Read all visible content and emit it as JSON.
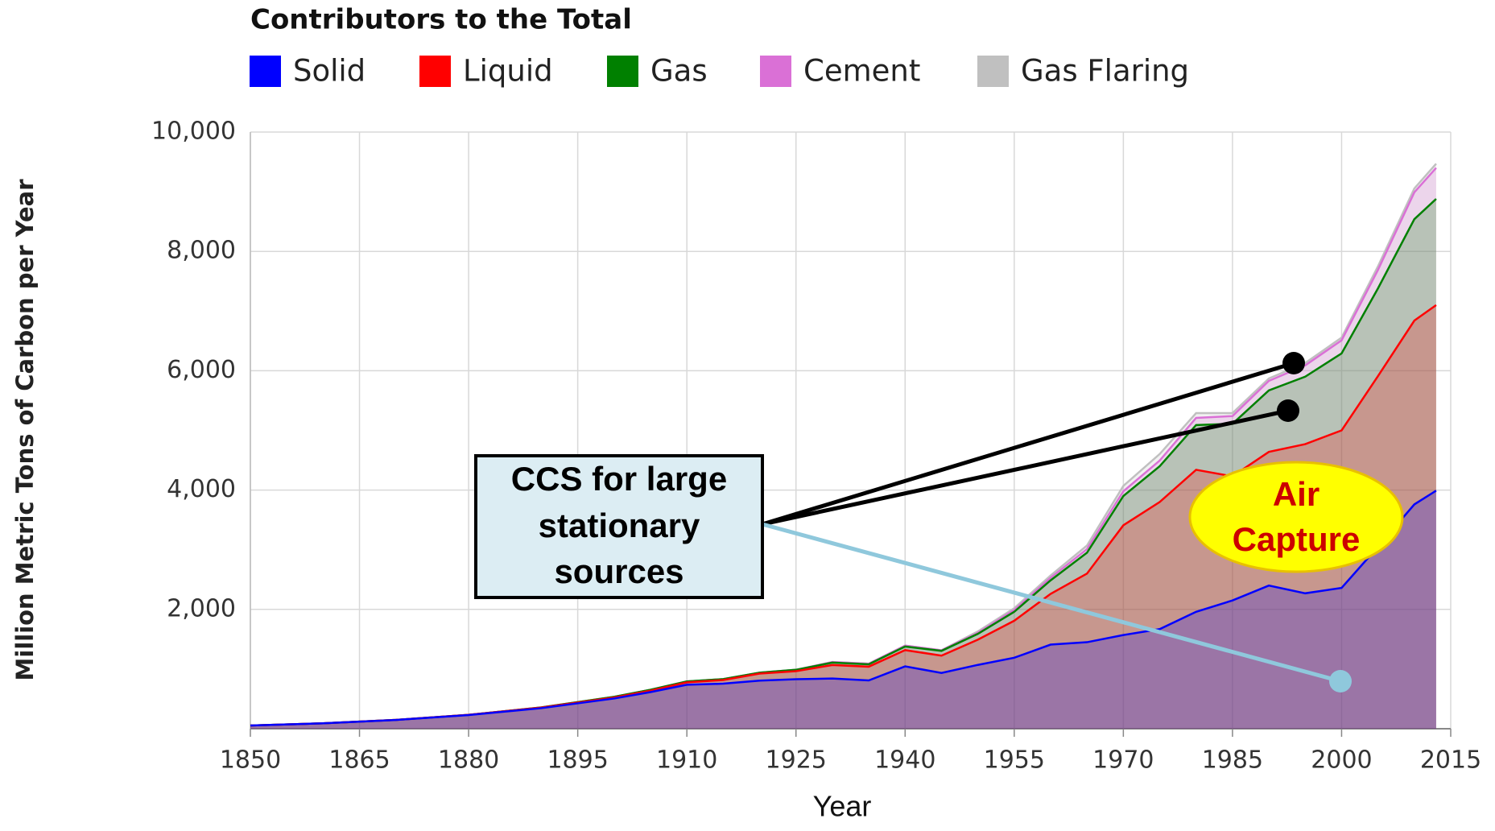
{
  "chart_data": {
    "type": "stacked-area",
    "title": "Contributors to the Total",
    "x_label": "Year",
    "y_label": "Million Metric Tons of Carbon per Year",
    "x": [
      1850,
      1860,
      1870,
      1880,
      1890,
      1900,
      1905,
      1910,
      1915,
      1920,
      1925,
      1930,
      1935,
      1940,
      1945,
      1950,
      1955,
      1960,
      1965,
      1970,
      1975,
      1980,
      1985,
      1990,
      1995,
      2000,
      2005,
      2010,
      2013
    ],
    "series": [
      {
        "name": "Solid",
        "color": "#0000ff",
        "values": [
          54,
          91,
          147,
          230,
          345,
          507,
          614,
          737,
          755,
          807,
          830,
          842,
          810,
          1045,
          935,
          1070,
          1190,
          1410,
          1450,
          1570,
          1670,
          1960,
          2150,
          2400,
          2270,
          2360,
          3050,
          3760,
          3990
        ]
      },
      {
        "name": "Liquid",
        "color": "#ff0000",
        "values": [
          0,
          0,
          1,
          3,
          9,
          16,
          24,
          40,
          62,
          117,
          135,
          226,
          230,
          273,
          290,
          423,
          620,
          850,
          1150,
          1840,
          2130,
          2380,
          2080,
          2240,
          2500,
          2640,
          2860,
          3080,
          3110
        ]
      },
      {
        "name": "Gas",
        "color": "#008000",
        "values": [
          0,
          0,
          0,
          0,
          3,
          12,
          15,
          16,
          15,
          15,
          23,
          40,
          40,
          60,
          80,
          97,
          150,
          227,
          350,
          490,
          600,
          750,
          880,
          1030,
          1130,
          1290,
          1470,
          1700,
          1780
        ]
      },
      {
        "name": "Cement",
        "color": "#da70d6",
        "values": [
          0,
          0,
          0,
          0,
          0,
          0,
          0,
          0,
          0,
          0,
          0,
          10,
          10,
          15,
          10,
          18,
          30,
          43,
          60,
          80,
          95,
          120,
          130,
          160,
          190,
          220,
          310,
          450,
          520
        ]
      },
      {
        "name": "Gas Flaring",
        "color": "#c0c0c0",
        "values": [
          0,
          0,
          0,
          0,
          0,
          0,
          0,
          0,
          0,
          0,
          0,
          0,
          0,
          0,
          0,
          23,
          30,
          39,
          60,
          90,
          110,
          80,
          50,
          40,
          40,
          45,
          60,
          65,
          70
        ]
      }
    ],
    "xlim": [
      1850,
      2015
    ],
    "xticks": [
      1850,
      1865,
      1880,
      1895,
      1910,
      1925,
      1940,
      1955,
      1970,
      1985,
      2000,
      2015
    ],
    "ylim": [
      0,
      10000
    ],
    "yticks": [
      {
        "value": 2000,
        "label": "2,000"
      },
      {
        "value": 4000,
        "label": "4,000"
      },
      {
        "value": 6000,
        "label": "6,000"
      },
      {
        "value": 8000,
        "label": "8,000"
      },
      {
        "value": 10000,
        "label": "10,000"
      }
    ],
    "grid": true,
    "legend": "top",
    "annotations": {
      "ccs_box": [
        "CCS for large",
        "stationary",
        "sources"
      ],
      "air_capture": [
        "Air",
        "Capture"
      ]
    }
  }
}
